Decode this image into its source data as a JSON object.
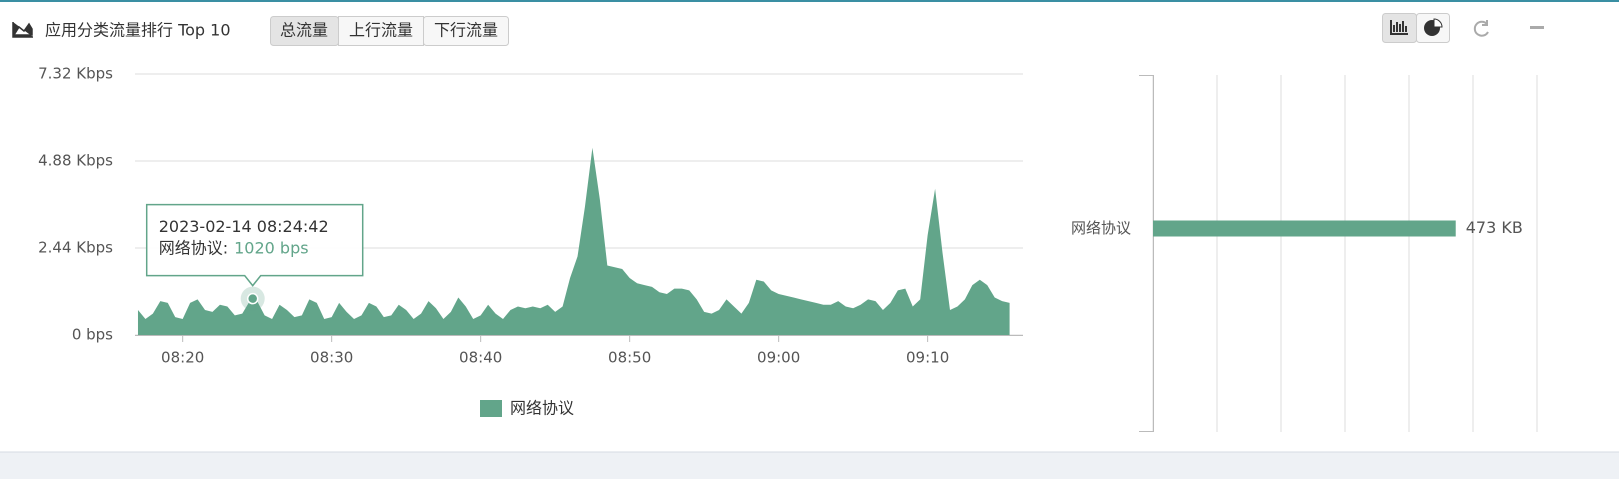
{
  "header": {
    "title": "应用分类流量排行 Top 10",
    "tabs": [
      "总流量",
      "上行流量",
      "下行流量"
    ]
  },
  "chart_data": [
    {
      "type": "area",
      "x": [
        497,
        497.5,
        498,
        498.5,
        499,
        499.5,
        500,
        500.5,
        501,
        501.5,
        502,
        502.5,
        503,
        503.5,
        504,
        504.5,
        505,
        505.5,
        506,
        506.5,
        507,
        507.5,
        508,
        508.5,
        509,
        509.5,
        510,
        510.5,
        511,
        511.5,
        512,
        512.5,
        513,
        513.5,
        514,
        514.5,
        515,
        515.5,
        516,
        516.5,
        517,
        517.5,
        518,
        518.5,
        519,
        519.5,
        520,
        520.5,
        521,
        521.5,
        522,
        522.5,
        523,
        523.5,
        524,
        524.5,
        525,
        525.5,
        526,
        526.5,
        527,
        527.5,
        528,
        528.5,
        529,
        529.5,
        530,
        530.5,
        531,
        531.5,
        532,
        532.5,
        533,
        533.5,
        534,
        534.5,
        535,
        535.5,
        536,
        536.5,
        537,
        537.5,
        538,
        538.5,
        539,
        539.5,
        540,
        540.5,
        541,
        541.5,
        542,
        542.5,
        543,
        543.5,
        544,
        544.5,
        545,
        545.5,
        546,
        546.5,
        547,
        547.5,
        548,
        548.5,
        549,
        549.5,
        550,
        550.5,
        551,
        551.5,
        552,
        552.5,
        553,
        553.5,
        554,
        554.5,
        555,
        555.5
      ],
      "series": [
        {
          "name": "网络协议",
          "color": "#62a58a",
          "values": [
            700,
            450,
            600,
            950,
            900,
            500,
            450,
            900,
            1000,
            700,
            650,
            850,
            800,
            550,
            600,
            950,
            950,
            550,
            450,
            850,
            700,
            500,
            550,
            1000,
            900,
            450,
            500,
            900,
            650,
            450,
            550,
            900,
            800,
            500,
            550,
            850,
            700,
            450,
            600,
            950,
            750,
            450,
            650,
            1050,
            800,
            450,
            550,
            850,
            600,
            450,
            700,
            800,
            750,
            800,
            750,
            850,
            650,
            800,
            1600,
            2200,
            3600,
            5250,
            3800,
            1950,
            1900,
            1850,
            1600,
            1450,
            1400,
            1350,
            1200,
            1150,
            1300,
            1300,
            1250,
            1000,
            650,
            600,
            700,
            1000,
            800,
            600,
            900,
            1550,
            1500,
            1250,
            1150,
            1100,
            1050,
            1000,
            950,
            900,
            850,
            850,
            950,
            800,
            750,
            850,
            1000,
            950,
            700,
            900,
            1250,
            1300,
            800,
            1000,
            2800,
            4100,
            2300,
            700,
            800,
            1000,
            1400,
            1550,
            1400,
            1050,
            950,
            900
          ]
        }
      ],
      "xlim": [
        496.8,
        556.4
      ],
      "xticks": [
        {
          "value": 500,
          "label": "08:20"
        },
        {
          "value": 510,
          "label": "08:30"
        },
        {
          "value": 520,
          "label": "08:40"
        },
        {
          "value": 530,
          "label": "08:50"
        },
        {
          "value": 540,
          "label": "09:00"
        },
        {
          "value": 550,
          "label": "09:10"
        }
      ],
      "ylim": [
        0,
        7320
      ],
      "yticks": [
        {
          "value": 0,
          "label": "0 bps"
        },
        {
          "value": 2440,
          "label": "2.44 Kbps"
        },
        {
          "value": 4880,
          "label": "4.88 Kbps"
        },
        {
          "value": 7320,
          "label": "7.32 Kbps"
        }
      ],
      "grid": true,
      "legend": "bottom",
      "tooltip": {
        "x": 504.7,
        "x_label": "2023-02-14 08:24:42",
        "label": "网络协议:",
        "value": 1020,
        "value_label": "1020 bps"
      }
    },
    {
      "type": "bar",
      "orientation": "horizontal",
      "categories": [
        "网络协议"
      ],
      "values": [
        473
      ],
      "value_labels": [
        "473 KB"
      ],
      "color": "#62a58a",
      "xlim": [
        0,
        600
      ],
      "xticks": [
        0,
        100,
        200,
        300,
        400,
        500,
        600
      ],
      "grid": true
    }
  ]
}
